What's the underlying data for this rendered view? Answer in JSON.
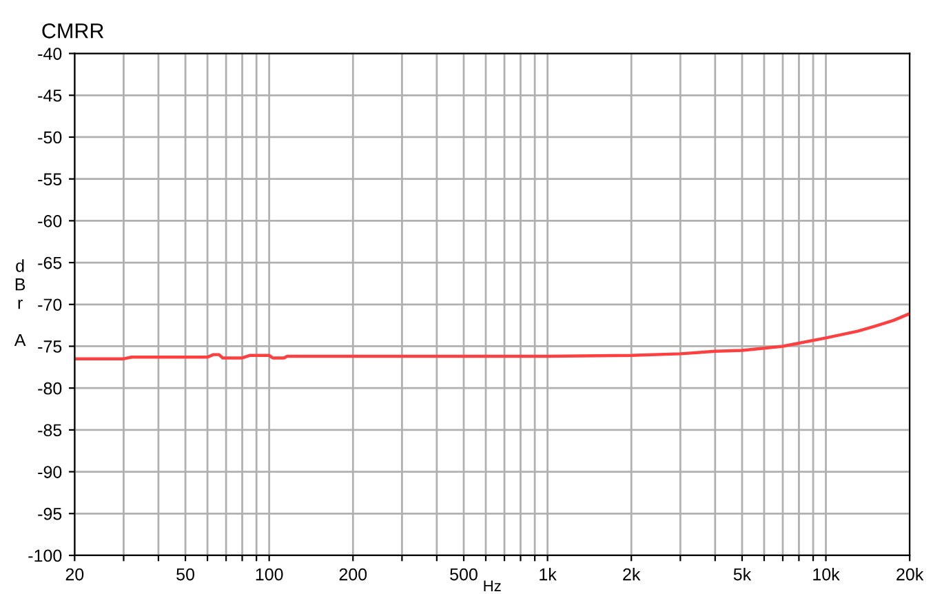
{
  "chart_data": {
    "type": "line",
    "title": "CMRR",
    "xlabel": "Hz",
    "ylabel": "d\nB\nr\n\nA",
    "x": [
      20,
      30,
      32,
      60,
      63,
      66,
      68,
      80,
      85,
      100,
      103,
      113,
      116,
      200,
      500,
      1000,
      2000,
      3000,
      4000,
      5000,
      7000,
      10000,
      13000,
      15000,
      17500,
      20000
    ],
    "series": [
      {
        "color": "#ff4040",
        "values": [
          -76.5,
          -76.5,
          -76.3,
          -76.3,
          -76.0,
          -76.0,
          -76.4,
          -76.4,
          -76.1,
          -76.1,
          -76.4,
          -76.4,
          -76.2,
          -76.2,
          -76.2,
          -76.2,
          -76.1,
          -75.9,
          -75.6,
          -75.5,
          -75.0,
          -74.0,
          -73.2,
          -72.6,
          -71.9,
          -71.1
        ]
      }
    ],
    "log": "x",
    "xlim": [
      20,
      20000
    ],
    "ylim": [
      -100,
      -40
    ],
    "xticks": [
      20,
      {
        "value": 30,
        "label": null
      },
      {
        "value": 40,
        "label": null
      },
      50,
      {
        "value": 60,
        "label": null
      },
      {
        "value": 70,
        "label": null
      },
      {
        "value": 80,
        "label": null
      },
      {
        "value": 90,
        "label": null
      },
      100,
      200,
      {
        "value": 300,
        "label": null
      },
      {
        "value": 400,
        "label": null
      },
      500,
      {
        "value": 600,
        "label": null
      },
      {
        "value": 700,
        "label": null
      },
      {
        "value": 800,
        "label": null
      },
      {
        "value": 900,
        "label": null
      },
      {
        "value": 1000,
        "label": "1k"
      },
      {
        "value": 2000,
        "label": "2k"
      },
      {
        "value": 3000,
        "label": null
      },
      {
        "value": 4000,
        "label": null
      },
      {
        "value": 5000,
        "label": "5k"
      },
      {
        "value": 6000,
        "label": null
      },
      {
        "value": 7000,
        "label": null
      },
      {
        "value": 8000,
        "label": null
      },
      {
        "value": 9000,
        "label": null
      },
      {
        "value": 10000,
        "label": "10k"
      },
      {
        "value": 20000,
        "label": "20k"
      }
    ],
    "yticks": [
      -100,
      -95,
      -90,
      -85,
      -80,
      -75,
      -70,
      -65,
      -60,
      -55,
      -50,
      -45,
      -40
    ],
    "grid": true,
    "legend": false,
    "marker": "none",
    "line_style": "solid"
  }
}
